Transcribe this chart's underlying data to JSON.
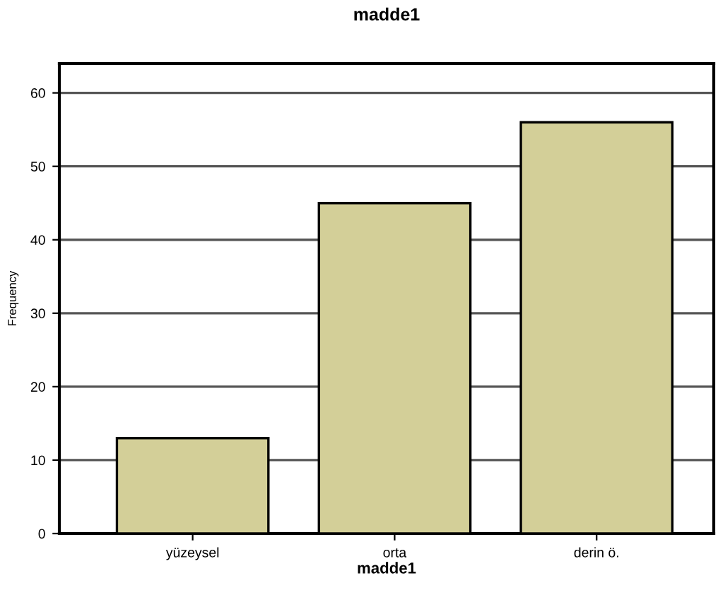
{
  "chart_data": {
    "type": "bar",
    "title": "madde1",
    "xlabel": "madde1",
    "ylabel": "Frequency",
    "categories": [
      "yüzeysel",
      "orta",
      "derin ö."
    ],
    "values": [
      13,
      45,
      56
    ],
    "color": "#d3cf98",
    "ylim": [
      0,
      64
    ],
    "yticks": [
      0,
      10,
      20,
      30,
      40,
      50,
      60
    ],
    "grid": "y",
    "legend": false
  }
}
